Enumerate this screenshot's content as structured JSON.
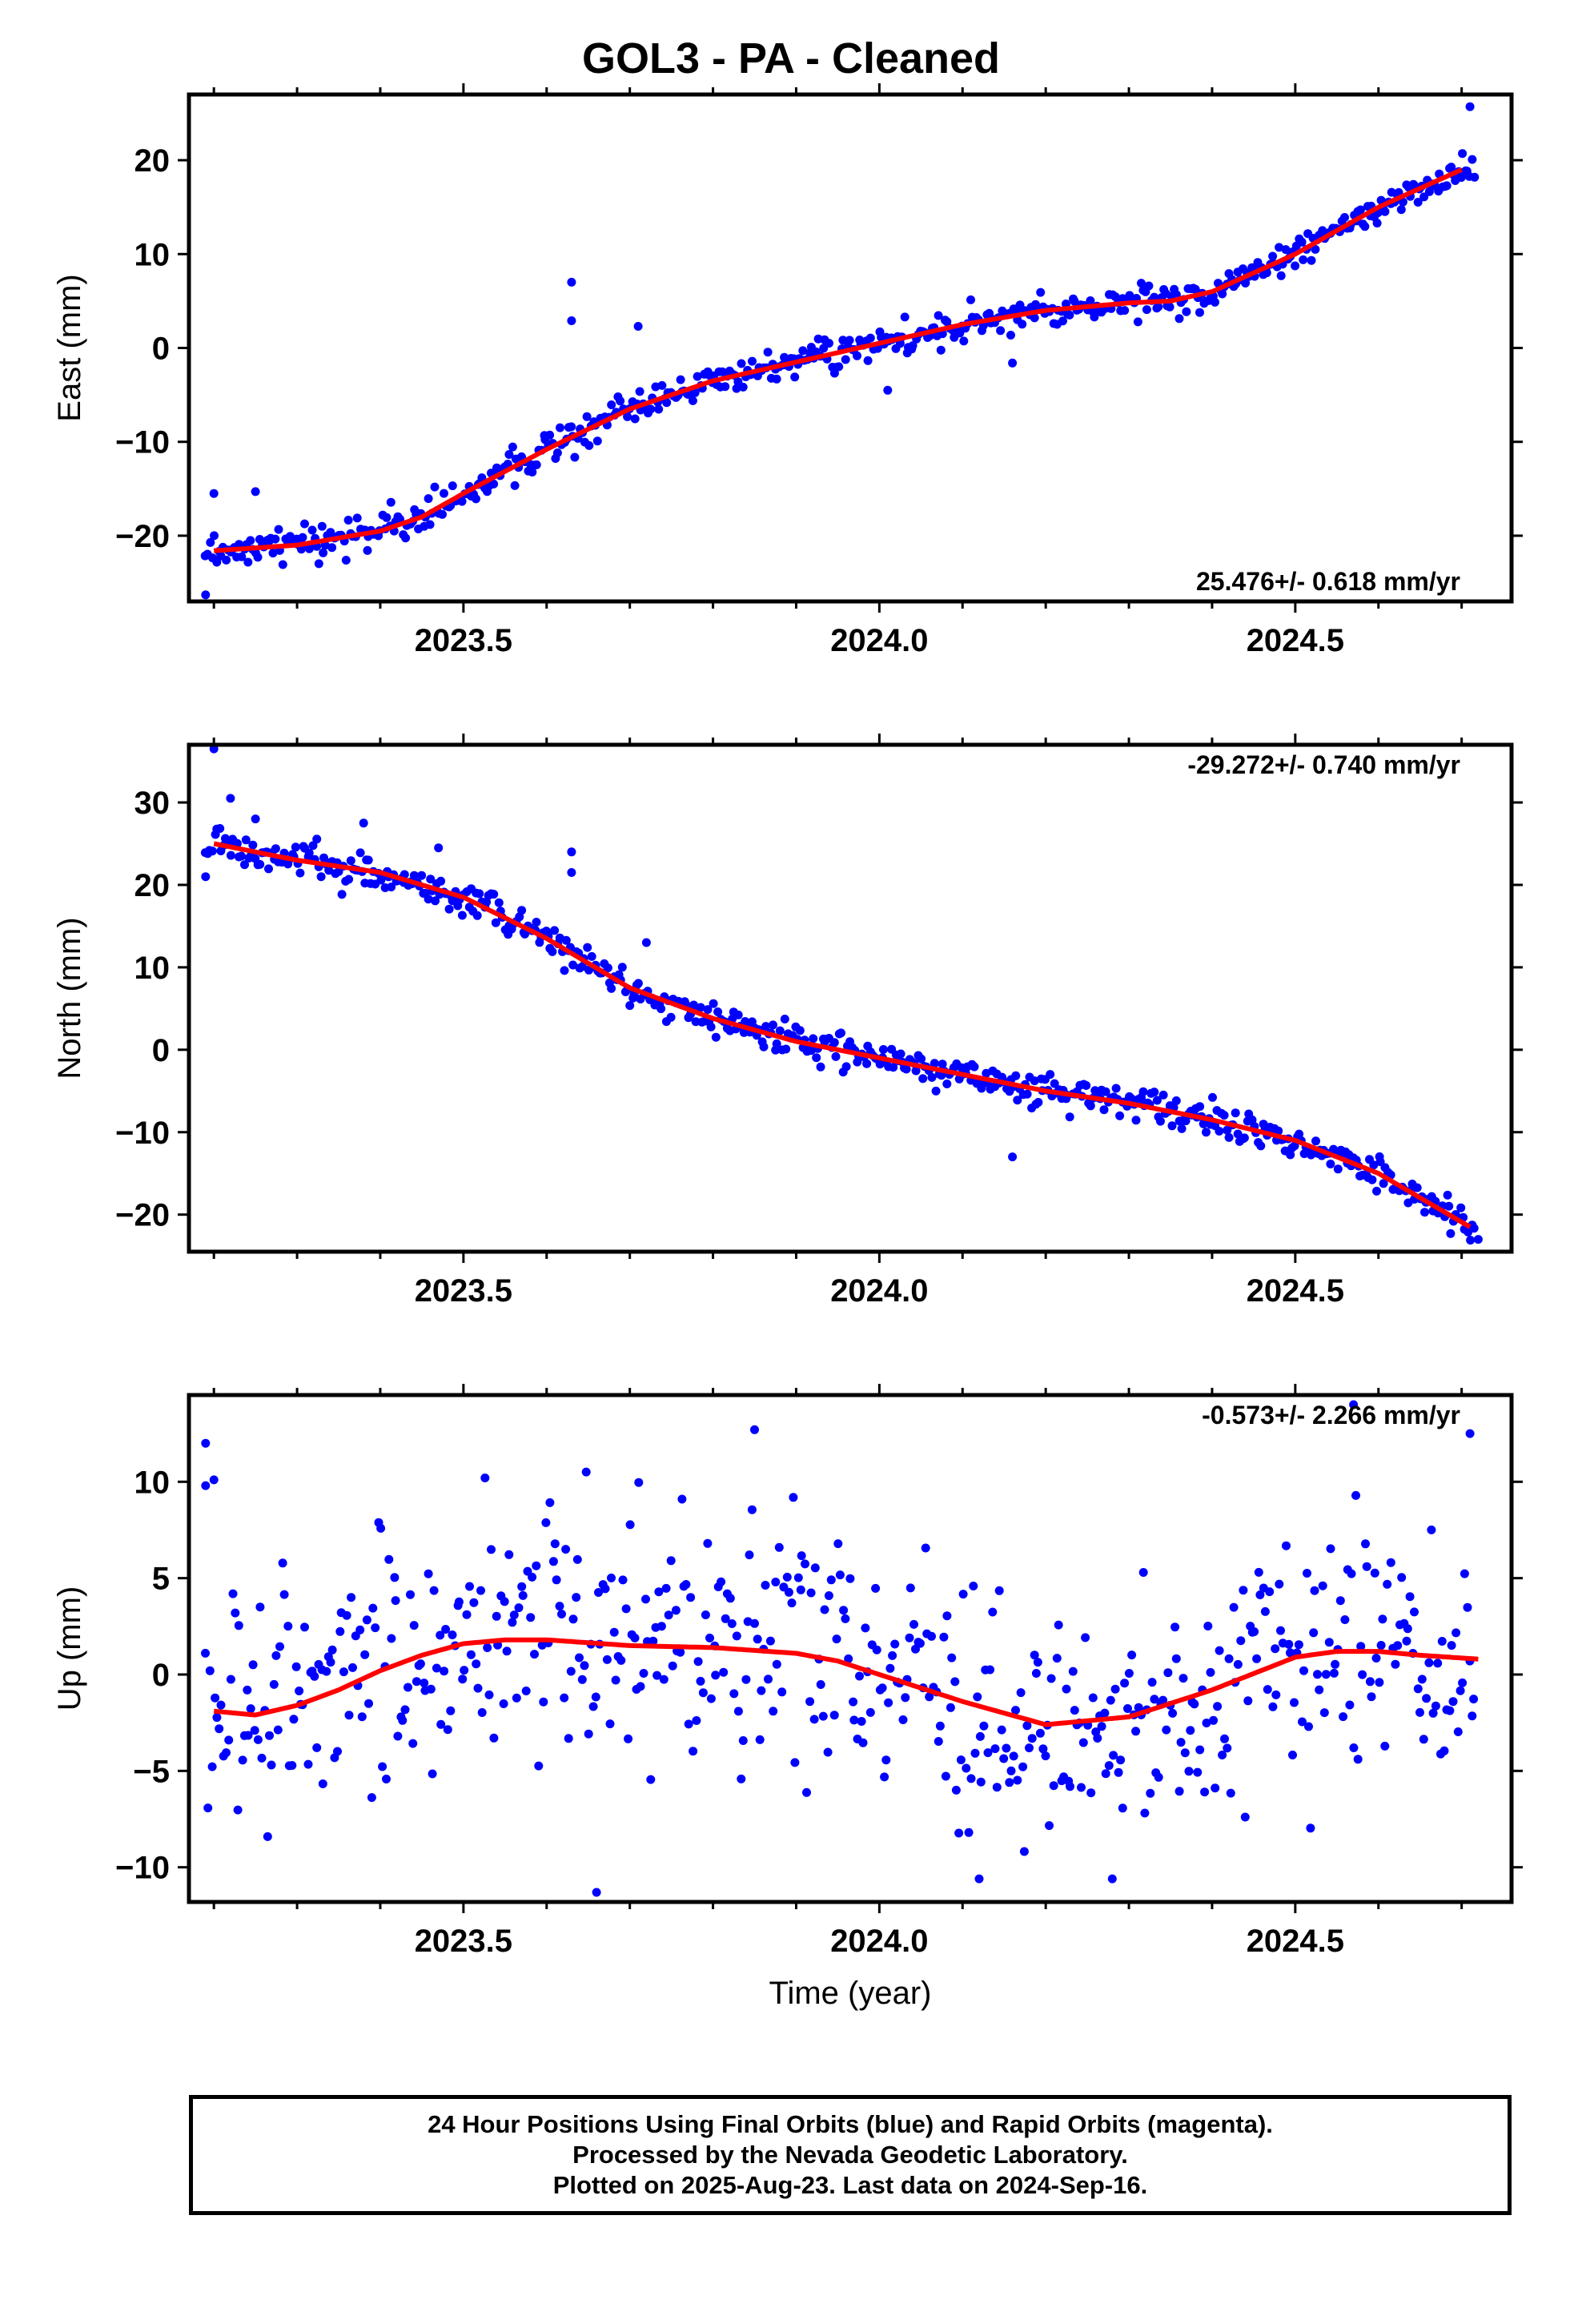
{
  "title": "GOL3  - PA - Cleaned",
  "xlabel": "Time (year)",
  "footer": {
    "line1": "24 Hour Positions Using Final Orbits (blue) and Rapid Orbits (magenta).",
    "line2": "Processed by the Nevada Geodetic Laboratory.",
    "line3": "Plotted on 2025-Aug-23. Last data on 2024-Sep-16."
  },
  "colors": {
    "points": "#0000ff",
    "fit": "#ff0000",
    "frame": "#000000"
  },
  "chart_data": [
    {
      "type": "scatter",
      "component": "east",
      "ylabel": "East (mm)",
      "rate": "25.476+/- 0.618 mm/yr",
      "rate_position": "bottom-right",
      "xlim": [
        2023.17,
        2024.76
      ],
      "ylim": [
        -27,
        27
      ],
      "xticks": [
        2023.5,
        2024.0,
        2024.5
      ],
      "xtick_labels": [
        "2023.5",
        "2024.0",
        "2024.5"
      ],
      "yticks": [
        -20,
        -10,
        0,
        10,
        20
      ],
      "ytick_labels": [
        "−20",
        "−10",
        "0",
        "10",
        "20"
      ],
      "grid": false,
      "fit": [
        [
          2023.2,
          -21.6
        ],
        [
          2023.3,
          -21.0
        ],
        [
          2023.4,
          -19.5
        ],
        [
          2023.45,
          -18.0
        ],
        [
          2023.5,
          -15.5
        ],
        [
          2023.6,
          -10.8
        ],
        [
          2023.7,
          -6.5
        ],
        [
          2023.8,
          -3.5
        ],
        [
          2023.9,
          -1.5
        ],
        [
          2024.0,
          0.5
        ],
        [
          2024.1,
          2.5
        ],
        [
          2024.2,
          4.0
        ],
        [
          2024.3,
          4.8
        ],
        [
          2024.35,
          5.0
        ],
        [
          2024.4,
          6.0
        ],
        [
          2024.5,
          10.0
        ],
        [
          2024.6,
          15.0
        ],
        [
          2024.7,
          19.0
        ]
      ],
      "outliers": [
        [
          2023.19,
          -26.3
        ],
        [
          2023.2,
          -15.5
        ],
        [
          2023.25,
          -15.3
        ],
        [
          2023.63,
          7.0
        ],
        [
          2023.63,
          2.9
        ],
        [
          2023.71,
          2.3
        ],
        [
          2024.01,
          -4.5
        ],
        [
          2024.16,
          -1.6
        ],
        [
          2024.71,
          25.7
        ]
      ],
      "noise_sigma": 0.9
    },
    {
      "type": "scatter",
      "component": "north",
      "ylabel": "North (mm)",
      "rate": "-29.272+/- 0.740 mm/yr",
      "rate_position": "top-right",
      "xlim": [
        2023.17,
        2024.76
      ],
      "ylim": [
        -24.5,
        37
      ],
      "xticks": [
        2023.5,
        2024.0,
        2024.5
      ],
      "xtick_labels": [
        "2023.5",
        "2024.0",
        "2024.5"
      ],
      "yticks": [
        -20,
        -10,
        0,
        10,
        20,
        30
      ],
      "ytick_labels": [
        "−20",
        "−10",
        "0",
        "10",
        "20",
        "30"
      ],
      "grid": false,
      "fit": [
        [
          2023.2,
          25.0
        ],
        [
          2023.3,
          23.0
        ],
        [
          2023.4,
          21.5
        ],
        [
          2023.5,
          18.5
        ],
        [
          2023.6,
          13.5
        ],
        [
          2023.7,
          7.5
        ],
        [
          2023.8,
          3.8
        ],
        [
          2023.9,
          1.0
        ],
        [
          2024.0,
          -1.0
        ],
        [
          2024.1,
          -3.0
        ],
        [
          2024.2,
          -5.0
        ],
        [
          2024.3,
          -6.5
        ],
        [
          2024.4,
          -8.5
        ],
        [
          2024.5,
          -11.0
        ],
        [
          2024.6,
          -15.0
        ],
        [
          2024.71,
          -21.5
        ]
      ],
      "outliers": [
        [
          2023.2,
          36.5
        ],
        [
          2023.22,
          30.5
        ],
        [
          2023.25,
          28.0
        ],
        [
          2023.19,
          21.0
        ],
        [
          2023.38,
          27.5
        ],
        [
          2023.47,
          24.5
        ],
        [
          2023.63,
          24.0
        ],
        [
          2023.63,
          21.5
        ],
        [
          2023.72,
          13.0
        ],
        [
          2024.16,
          -13.0
        ],
        [
          2024.72,
          -23.0
        ]
      ],
      "noise_sigma": 1.0
    },
    {
      "type": "scatter",
      "component": "up",
      "ylabel": "Up (mm)",
      "rate": "-0.573+/- 2.266 mm/yr",
      "rate_position": "top-right",
      "xlim": [
        2023.17,
        2024.76
      ],
      "ylim": [
        -11.8,
        14.5
      ],
      "xticks": [
        2023.5,
        2024.0,
        2024.5
      ],
      "xtick_labels": [
        "2023.5",
        "2024.0",
        "2024.5"
      ],
      "yticks": [
        -10,
        -5,
        0,
        5,
        10
      ],
      "ytick_labels": [
        "−10",
        "−5",
        "0",
        "5",
        "10"
      ],
      "grid": false,
      "fit": [
        [
          2023.2,
          -1.9
        ],
        [
          2023.25,
          -2.1
        ],
        [
          2023.3,
          -1.6
        ],
        [
          2023.35,
          -0.8
        ],
        [
          2023.4,
          0.2
        ],
        [
          2023.45,
          1.0
        ],
        [
          2023.5,
          1.6
        ],
        [
          2023.55,
          1.8
        ],
        [
          2023.6,
          1.8
        ],
        [
          2023.7,
          1.5
        ],
        [
          2023.8,
          1.4
        ],
        [
          2023.9,
          1.1
        ],
        [
          2023.95,
          0.7
        ],
        [
          2024.0,
          0.0
        ],
        [
          2024.1,
          -1.4
        ],
        [
          2024.2,
          -2.6
        ],
        [
          2024.3,
          -2.2
        ],
        [
          2024.4,
          -0.8
        ],
        [
          2024.5,
          0.9
        ],
        [
          2024.55,
          1.2
        ],
        [
          2024.6,
          1.2
        ],
        [
          2024.65,
          1.0
        ],
        [
          2024.72,
          0.8
        ]
      ],
      "outliers": [
        [
          2023.19,
          12.0
        ],
        [
          2023.19,
          9.8
        ],
        [
          2023.2,
          10.1
        ],
        [
          2023.85,
          12.7
        ],
        [
          2023.66,
          -11.3
        ],
        [
          2024.12,
          -10.6
        ],
        [
          2024.28,
          -10.6
        ],
        [
          2024.71,
          12.5
        ],
        [
          2024.57,
          14.0
        ]
      ],
      "noise_sigma": 3.2
    }
  ]
}
